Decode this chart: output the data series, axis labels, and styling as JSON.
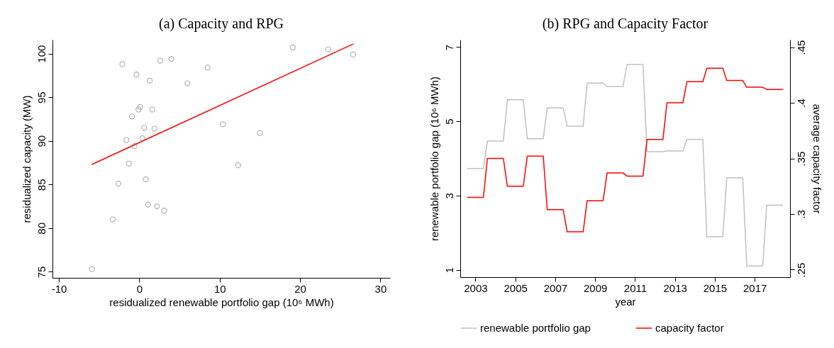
{
  "chart_data": [
    {
      "type": "scatter",
      "title": "(a) Capacity and RPG",
      "xlabel": "residualized renewable portfolio gap (10⁶ MWh)",
      "ylabel": "residualized capacity (MW)",
      "xlim": [
        -10.8,
        31.2
      ],
      "xticks": [
        -10,
        0,
        10,
        20,
        30
      ],
      "ylim": [
        74.3,
        101.6
      ],
      "yticks": [
        75,
        80,
        85,
        90,
        95,
        100
      ],
      "series": [
        {
          "color": "#b0b0b0",
          "marker": "circle",
          "x": [
            -2.1,
            2.6,
            4.0,
            -0.35,
            1.3,
            6.0,
            8.5,
            19.1,
            23.5,
            26.6,
            0.1,
            -0.1,
            1.6,
            -0.9,
            0.6,
            1.9,
            0.4,
            -1.6,
            -0.6,
            10.4,
            15.0,
            -1.3,
            12.3,
            -2.6,
            0.8,
            1.1,
            2.2,
            3.1,
            -3.3,
            -5.9
          ],
          "values": [
            98.8,
            99.2,
            99.4,
            97.6,
            96.9,
            96.6,
            98.4,
            100.7,
            100.5,
            99.9,
            93.9,
            93.6,
            93.6,
            92.8,
            91.5,
            91.4,
            90.3,
            90.1,
            89.4,
            91.9,
            90.9,
            87.4,
            87.2,
            85.1,
            85.6,
            82.7,
            82.5,
            82.0,
            81.0,
            75.3
          ]
        },
        {
          "type": "line",
          "color": "#ff0000",
          "x": [
            -5.9,
            26.6
          ],
          "values": [
            87.3,
            101.1
          ]
        }
      ]
    },
    {
      "type": "line",
      "title": "(b) RPG and Capacity Factor",
      "xlabel": "year",
      "ylabel": "renewable portfolio gap (10⁶ MWh)",
      "y2label": "average capacity factor",
      "xlim": [
        2002.24,
        2018.77
      ],
      "xticks": [
        2003,
        2005,
        2007,
        2009,
        2011,
        2013,
        2015,
        2017
      ],
      "ylim": [
        0.8,
        7.2
      ],
      "yticks": [
        1,
        3,
        5,
        7
      ],
      "y2lim": [
        0.2433,
        0.4567
      ],
      "y2ticks": [
        {
          "value": 0.25,
          "label": ".25"
        },
        {
          "value": 0.3,
          "label": ".3"
        },
        {
          "value": 0.35,
          "label": ".35"
        },
        {
          "value": 0.4,
          "label": ".4"
        },
        {
          "value": 0.45,
          "label": ".45"
        }
      ],
      "legend": "bottom",
      "series": [
        {
          "name": "renewable portfolio gap",
          "color": "#c0c0c0",
          "axis": "y",
          "x": [
            2002.6,
            2003.4,
            2003.6,
            2004.4,
            2004.6,
            2005.4,
            2005.6,
            2006.4,
            2006.6,
            2007.4,
            2007.6,
            2008.4,
            2008.6,
            2009.4,
            2009.6,
            2010.4,
            2010.6,
            2011.4,
            2011.6,
            2012.4,
            2012.6,
            2013.4,
            2013.6,
            2014.4,
            2014.6,
            2015.4,
            2015.6,
            2016.4,
            2016.6,
            2017.4,
            2017.6,
            2018.4
          ],
          "values": [
            3.73,
            3.73,
            4.47,
            4.47,
            5.58,
            5.58,
            4.53,
            4.53,
            5.36,
            5.36,
            4.87,
            4.87,
            6.03,
            6.03,
            5.94,
            5.94,
            6.53,
            6.53,
            4.18,
            4.18,
            4.2,
            4.2,
            4.51,
            4.51,
            1.89,
            1.89,
            3.48,
            3.48,
            1.1,
            1.1,
            2.74,
            2.74
          ]
        },
        {
          "name": "capacity factor",
          "color": "#ff0000",
          "axis": "y2",
          "x": [
            2002.6,
            2003.4,
            2003.6,
            2004.4,
            2004.6,
            2005.4,
            2005.6,
            2006.4,
            2006.6,
            2007.4,
            2007.6,
            2008.4,
            2008.6,
            2009.4,
            2009.6,
            2010.4,
            2010.6,
            2011.4,
            2011.6,
            2012.4,
            2012.6,
            2013.4,
            2013.6,
            2014.4,
            2014.6,
            2015.4,
            2015.6,
            2016.4,
            2016.6,
            2017.4,
            2017.6,
            2018.4
          ],
          "values": [
            0.315,
            0.315,
            0.35,
            0.35,
            0.325,
            0.325,
            0.352,
            0.352,
            0.304,
            0.304,
            0.284,
            0.284,
            0.312,
            0.312,
            0.337,
            0.337,
            0.334,
            0.334,
            0.367,
            0.367,
            0.4,
            0.4,
            0.419,
            0.419,
            0.431,
            0.431,
            0.42,
            0.42,
            0.414,
            0.414,
            0.412,
            0.412
          ]
        }
      ]
    }
  ]
}
